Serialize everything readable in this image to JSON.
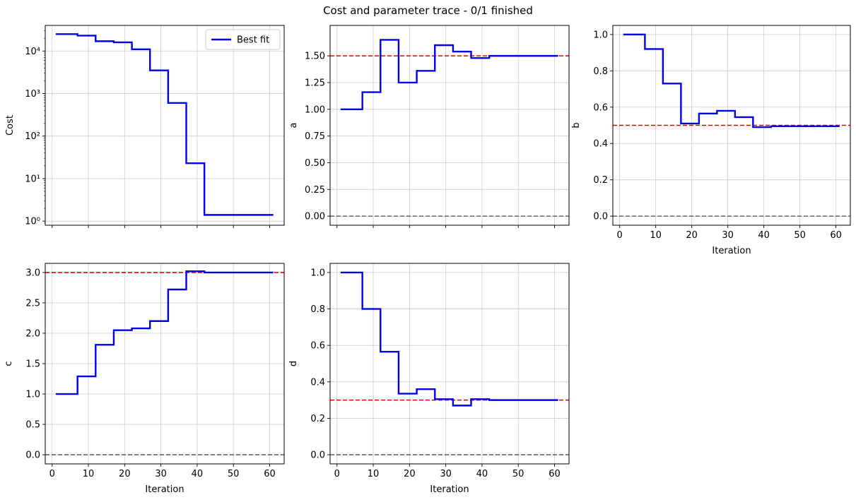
{
  "figure": {
    "title": "Cost and parameter trace - 0/1 finished"
  },
  "colors": {
    "best_fit": "#0000ee",
    "true_value": "#e00000",
    "zero_line": "#666666",
    "grid": "#cccccc"
  },
  "chart_data": [
    {
      "id": "cost",
      "type": "line",
      "step": "post",
      "title": "",
      "xlabel": "",
      "ylabel": "Cost",
      "yscale": "log",
      "xlim": [
        -1.9,
        64
      ],
      "ylim": [
        0.8,
        40000
      ],
      "grid": true,
      "legend": {
        "placement": "top-right",
        "entries": [
          "Best fit"
        ]
      },
      "x_ticks": [
        0,
        10,
        20,
        30,
        40,
        50,
        60
      ],
      "x_ticklabels_visible": false,
      "y_ticks": [
        1,
        10,
        100,
        1000,
        10000
      ],
      "y_ticklabels": [
        "10⁰",
        "10¹",
        "10²",
        "10³",
        "10⁴"
      ],
      "series": [
        {
          "name": "Best fit",
          "x": [
            1,
            7,
            12,
            17,
            22,
            27,
            32,
            37,
            42,
            61
          ],
          "y": [
            25000,
            23000,
            17000,
            16000,
            11000,
            3500,
            600,
            23,
            1.4,
            1.4
          ]
        }
      ],
      "hlines": []
    },
    {
      "id": "a",
      "type": "line",
      "step": "post",
      "title": "",
      "xlabel": "",
      "ylabel": "a",
      "xlim": [
        -1.9,
        64
      ],
      "ylim": [
        -0.085,
        1.785
      ],
      "grid": true,
      "x_ticks": [
        0,
        10,
        20,
        30,
        40,
        50,
        60
      ],
      "x_ticklabels_visible": false,
      "y_ticks": [
        0,
        0.25,
        0.5,
        0.75,
        1,
        1.25,
        1.5
      ],
      "y_ticklabels": [
        "0.00",
        "0.25",
        "0.50",
        "0.75",
        "1.00",
        "1.25",
        "1.50"
      ],
      "series": [
        {
          "x": [
            1,
            7,
            12,
            17,
            22,
            27,
            32,
            37,
            42,
            61
          ],
          "y": [
            1.0,
            1.16,
            1.65,
            1.25,
            1.36,
            1.6,
            1.54,
            1.48,
            1.5,
            1.5
          ]
        }
      ],
      "hlines": [
        {
          "y": 1.5,
          "kind": "true_value"
        },
        {
          "y": 0,
          "kind": "zero_line"
        }
      ]
    },
    {
      "id": "b",
      "type": "line",
      "step": "post",
      "title": "",
      "xlabel": "Iteration",
      "ylabel": "b",
      "xlim": [
        -1.9,
        64
      ],
      "ylim": [
        -0.05,
        1.05
      ],
      "grid": true,
      "x_ticks": [
        0,
        10,
        20,
        30,
        40,
        50,
        60
      ],
      "x_ticklabels_visible": true,
      "x_ticklabels": [
        "0",
        "10",
        "20",
        "30",
        "40",
        "50",
        "60"
      ],
      "y_ticks": [
        0,
        0.2,
        0.4,
        0.6,
        0.8,
        1.0
      ],
      "y_ticklabels": [
        "0.0",
        "0.2",
        "0.4",
        "0.6",
        "0.8",
        "1.0"
      ],
      "series": [
        {
          "x": [
            1,
            7,
            12,
            17,
            22,
            27,
            32,
            37,
            42,
            61
          ],
          "y": [
            1.0,
            0.92,
            0.73,
            0.51,
            0.565,
            0.58,
            0.545,
            0.49,
            0.495,
            0.495
          ]
        }
      ],
      "hlines": [
        {
          "y": 0.5,
          "kind": "true_value"
        },
        {
          "y": 0,
          "kind": "zero_line"
        }
      ]
    },
    {
      "id": "c",
      "type": "line",
      "step": "post",
      "title": "",
      "xlabel": "Iteration",
      "ylabel": "c",
      "xlim": [
        -1.9,
        64
      ],
      "ylim": [
        -0.15,
        3.15
      ],
      "grid": true,
      "x_ticks": [
        0,
        10,
        20,
        30,
        40,
        50,
        60
      ],
      "x_ticklabels_visible": true,
      "x_ticklabels": [
        "0",
        "10",
        "20",
        "30",
        "40",
        "50",
        "60"
      ],
      "y_ticks": [
        0,
        0.5,
        1,
        1.5,
        2,
        2.5,
        3
      ],
      "y_ticklabels": [
        "0.0",
        "0.5",
        "1.0",
        "1.5",
        "2.0",
        "2.5",
        "3.0"
      ],
      "series": [
        {
          "x": [
            1,
            7,
            12,
            17,
            22,
            27,
            32,
            37,
            42,
            61
          ],
          "y": [
            1.0,
            1.29,
            1.81,
            2.05,
            2.08,
            2.2,
            2.72,
            3.02,
            3.0,
            3.0
          ]
        }
      ],
      "hlines": [
        {
          "y": 3.0,
          "kind": "true_value"
        },
        {
          "y": 0,
          "kind": "zero_line"
        }
      ]
    },
    {
      "id": "d",
      "type": "line",
      "step": "post",
      "title": "",
      "xlabel": "Iteration",
      "ylabel": "d",
      "xlim": [
        -1.9,
        64
      ],
      "ylim": [
        -0.05,
        1.05
      ],
      "grid": true,
      "x_ticks": [
        0,
        10,
        20,
        30,
        40,
        50,
        60
      ],
      "x_ticklabels_visible": true,
      "x_ticklabels": [
        "0",
        "10",
        "20",
        "30",
        "40",
        "50",
        "60"
      ],
      "y_ticks": [
        0,
        0.2,
        0.4,
        0.6,
        0.8,
        1.0
      ],
      "y_ticklabels": [
        "0.0",
        "0.2",
        "0.4",
        "0.6",
        "0.8",
        "1.0"
      ],
      "series": [
        {
          "x": [
            1,
            7,
            12,
            17,
            22,
            27,
            32,
            37,
            42,
            61
          ],
          "y": [
            1.0,
            0.8,
            0.565,
            0.335,
            0.36,
            0.305,
            0.27,
            0.305,
            0.3,
            0.3
          ]
        }
      ],
      "hlines": [
        {
          "y": 0.3,
          "kind": "true_value"
        },
        {
          "y": 0,
          "kind": "zero_line"
        }
      ]
    }
  ]
}
